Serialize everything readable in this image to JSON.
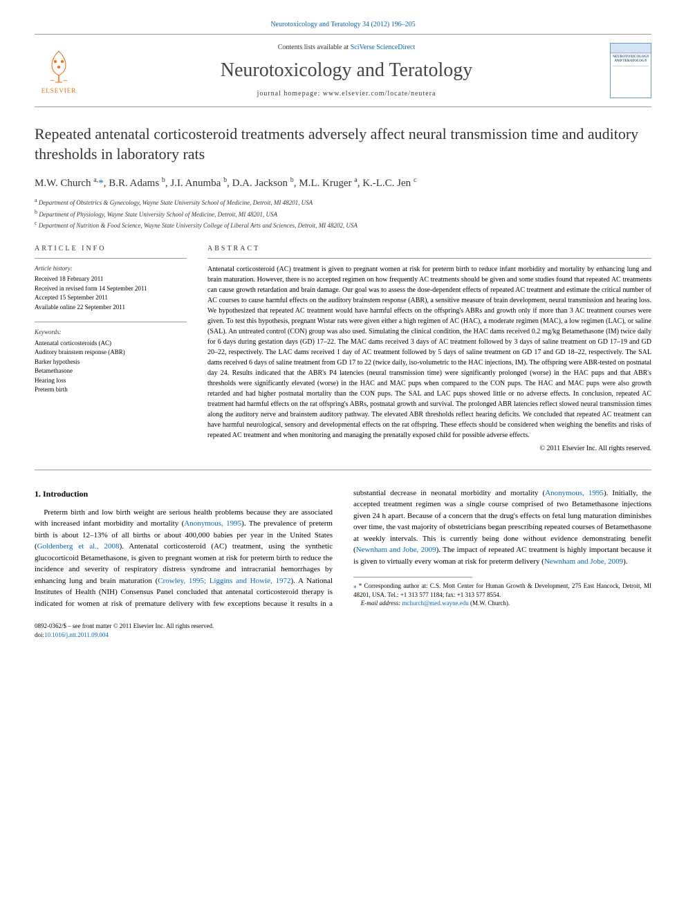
{
  "top_citation": "Neurotoxicology and Teratology 34 (2012) 196–205",
  "header": {
    "contents_prefix": "Contents lists available at ",
    "contents_link": "SciVerse ScienceDirect",
    "journal": "Neurotoxicology and Teratology",
    "homepage_prefix": "journal homepage: ",
    "homepage_url": "www.elsevier.com/locate/neutera",
    "publisher": "ELSEVIER",
    "cover_title": "NEUROTOXICOLOGY AND TERATOLOGY"
  },
  "title": "Repeated antenatal corticosteroid treatments adversely affect neural transmission time and auditory thresholds in laboratory rats",
  "authors_html": "M.W. Church <sup>a,</sup><span class='corr-star'>*</span>, B.R. Adams <sup>b</sup>, J.I. Anumba <sup>b</sup>, D.A. Jackson <sup>b</sup>, M.L. Kruger <sup>a</sup>, K.-L.C. Jen <sup>c</sup>",
  "affiliations": [
    {
      "sup": "a",
      "text": "Department of Obstetrics & Gynecology, Wayne State University School of Medicine, Detroit, MI 48201, USA"
    },
    {
      "sup": "b",
      "text": "Department of Physiology, Wayne State University School of Medicine, Detroit, MI 48201, USA"
    },
    {
      "sup": "c",
      "text": "Department of Nutrition & Food Science, Wayne State University College of Liberal Arts and Sciences, Detroit, MI 48202, USA"
    }
  ],
  "article_info": {
    "header": "ARTICLE INFO",
    "history_label": "Article history:",
    "history": [
      "Received 18 February 2011",
      "Received in revised form 14 September 2011",
      "Accepted 15 September 2011",
      "Available online 22 September 2011"
    ],
    "keywords_label": "Keywords:",
    "keywords": [
      "Antenatal corticosteroids (AC)",
      "Auditory brainstem response (ABR)",
      "Barker hypothesis",
      "Betamethasone",
      "Hearing loss",
      "Preterm birth"
    ]
  },
  "abstract": {
    "header": "ABSTRACT",
    "text": "Antenatal corticosteroid (AC) treatment is given to pregnant women at risk for preterm birth to reduce infant morbidity and mortality by enhancing lung and brain maturation. However, there is no accepted regimen on how frequently AC treatments should be given and some studies found that repeated AC treatments can cause growth retardation and brain damage. Our goal was to assess the dose-dependent effects of repeated AC treatment and estimate the critical number of AC courses to cause harmful effects on the auditory brainstem response (ABR), a sensitive measure of brain development, neural transmission and hearing loss. We hypothesized that repeated AC treatment would have harmful effects on the offspring's ABRs and growth only if more than 3 AC treatment courses were given. To test this hypothesis, pregnant Wistar rats were given either a high regimen of AC (HAC), a moderate regimen (MAC), a low regimen (LAC), or saline (SAL). An untreated control (CON) group was also used. Simulating the clinical condition, the HAC dams received 0.2 mg/kg Betamethasone (IM) twice daily for 6 days during gestation days (GD) 17–22. The MAC dams received 3 days of AC treatment followed by 3 days of saline treatment on GD 17–19 and GD 20–22, respectively. The LAC dams received 1 day of AC treatment followed by 5 days of saline treatment on GD 17 and GD 18–22, respectively. The SAL dams received 6 days of saline treatment from GD 17 to 22 (twice daily, iso-volumetric to the HAC injections, IM). The offspring were ABR-tested on postnatal day 24. Results indicated that the ABR's P4 latencies (neural transmission time) were significantly prolonged (worse) in the HAC pups and that ABR's thresholds were significantly elevated (worse) in the HAC and MAC pups when compared to the CON pups. The HAC and MAC pups were also growth retarded and had higher postnatal mortality than the CON pups. The SAL and LAC pups showed little or no adverse effects. In conclusion, repeated AC treatment had harmful effects on the rat offspring's ABRs, postnatal growth and survival. The prolonged ABR latencies reflect slowed neural transmission times along the auditory nerve and brainstem auditory pathway. The elevated ABR thresholds reflect hearing deficits. We concluded that repeated AC treatment can have harmful neurological, sensory and developmental effects on the rat offspring. These effects should be considered when weighing the benefits and risks of repeated AC treatment and when monitoring and managing the prenatally exposed child for possible adverse effects.",
    "copyright": "© 2011 Elsevier Inc. All rights reserved."
  },
  "intro": {
    "heading": "1. Introduction",
    "para1_pre": "Preterm birth and low birth weight are serious health problems because they are associated with increased infant morbidity and mortality (",
    "cite1": "Anonymous, 1995",
    "para1_mid": "). The prevalence of preterm birth is about 12–13% of all births or about 400,000 babies per year in the United States (",
    "cite2": "Goldenberg et al., 2008",
    "para1_post": "). Antenatal corticosteroid (AC) treatment, using the synthetic glucocorticoid Betamethasone, is given to pregnant women at risk for preterm birth to reduce the incidence and severity of respiratory distress syndrome and intracranial hemorrhages",
    "para2_pre": "by enhancing lung and brain maturation (",
    "cite3": "Crowley, 1995; Liggins and Howie, 1972",
    "para2_mid1": "). A National Institutes of Health (NIH) Consensus Panel concluded that antenatal corticosteroid therapy is indicated for women at risk of premature delivery with few exceptions because it results in a substantial decrease in neonatal morbidity and mortality (",
    "cite4": "Anonymous, 1995",
    "para2_mid2": "). Initially, the accepted treatment regimen was a single course comprised of two Betamethasone injections given 24 h apart. Because of a concern that the drug's effects on fetal lung maturation diminishes over time, the vast majority of obstetricians began prescribing repeated courses of Betamethasone at weekly intervals. This is currently being done without evidence demonstrating benefit (",
    "cite5": "Newnham and Jobe, 2009",
    "para2_mid3": "). The impact of repeated AC treatment is highly important because it is given to virtually every woman at risk for preterm delivery (",
    "cite6": "Newnham and Jobe, 2009",
    "para2_end": ")."
  },
  "footnote": {
    "corr_prefix": "* Corresponding author at: C.S. Mott Center for Human Growth & Development, 275 East Hancock, Detroit, MI 48201, USA. Tel.: +1 313 577 1184; fax: +1 313 577 8554.",
    "email_label": "E-mail address: ",
    "email": "mchurch@med.wayne.edu",
    "email_suffix": " (M.W. Church)."
  },
  "bottom": {
    "issn_line": "0892-0362/$ – see front matter © 2011 Elsevier Inc. All rights reserved.",
    "doi_prefix": "doi:",
    "doi": "10.1016/j.ntt.2011.09.004"
  }
}
